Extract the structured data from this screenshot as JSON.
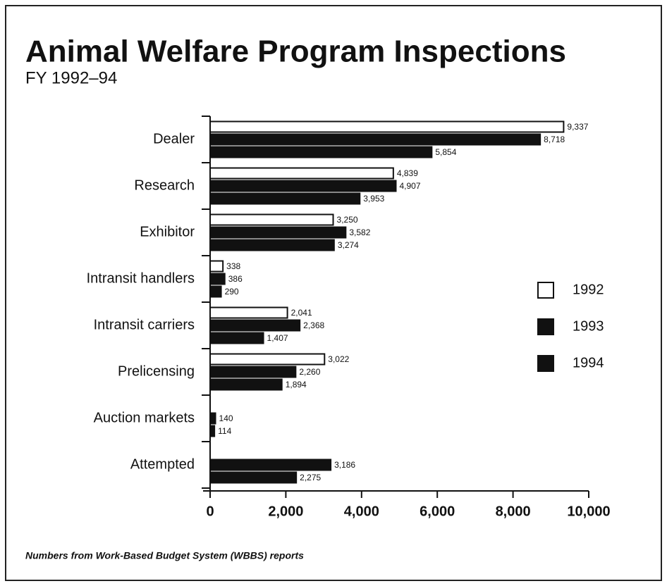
{
  "chart_data": {
    "type": "bar",
    "orientation": "horizontal",
    "title": "Animal Welfare Program Inspections",
    "subtitle": "FY 1992–94",
    "footnote": "Numbers from Work-Based Budget System (WBBS) reports",
    "categories": [
      "Dealer",
      "Research",
      "Exhibitor",
      "Intransit handlers",
      "Intransit carriers",
      "Prelicensing",
      "Auction markets",
      "Attempted"
    ],
    "series": [
      {
        "name": "1992",
        "color": "#ffffff",
        "values": [
          9337,
          4839,
          3250,
          338,
          2041,
          3022,
          null,
          null
        ],
        "value_labels": [
          "9,337",
          "4,839",
          "3,250",
          "338",
          "2,041",
          "3,022",
          null,
          null
        ]
      },
      {
        "name": "1993",
        "color": "#111111",
        "values": [
          8718,
          4907,
          3582,
          386,
          2368,
          2260,
          140,
          3186
        ],
        "value_labels": [
          "8,718",
          "4,907",
          "3,582",
          "386",
          "2,368",
          "2,260",
          "140",
          "3,186"
        ]
      },
      {
        "name": "1994",
        "color": "#111111",
        "values": [
          5854,
          3953,
          3274,
          290,
          1407,
          1894,
          114,
          2275
        ],
        "value_labels": [
          "5,854",
          "3,953",
          "3,274",
          "290",
          "1,407",
          "1,894",
          "114",
          "2,275"
        ]
      }
    ],
    "xlim": [
      0,
      10000
    ],
    "xticks": [
      0,
      {
        "value": 2000,
        "label": "2,000"
      },
      {
        "value": 4000,
        "label": "4,000"
      },
      {
        "value": 6000,
        "label": "6,000"
      },
      {
        "value": 8000,
        "label": "8,000"
      },
      {
        "value": 10000,
        "label": "10,000"
      }
    ],
    "grid": false,
    "legend": "right"
  }
}
